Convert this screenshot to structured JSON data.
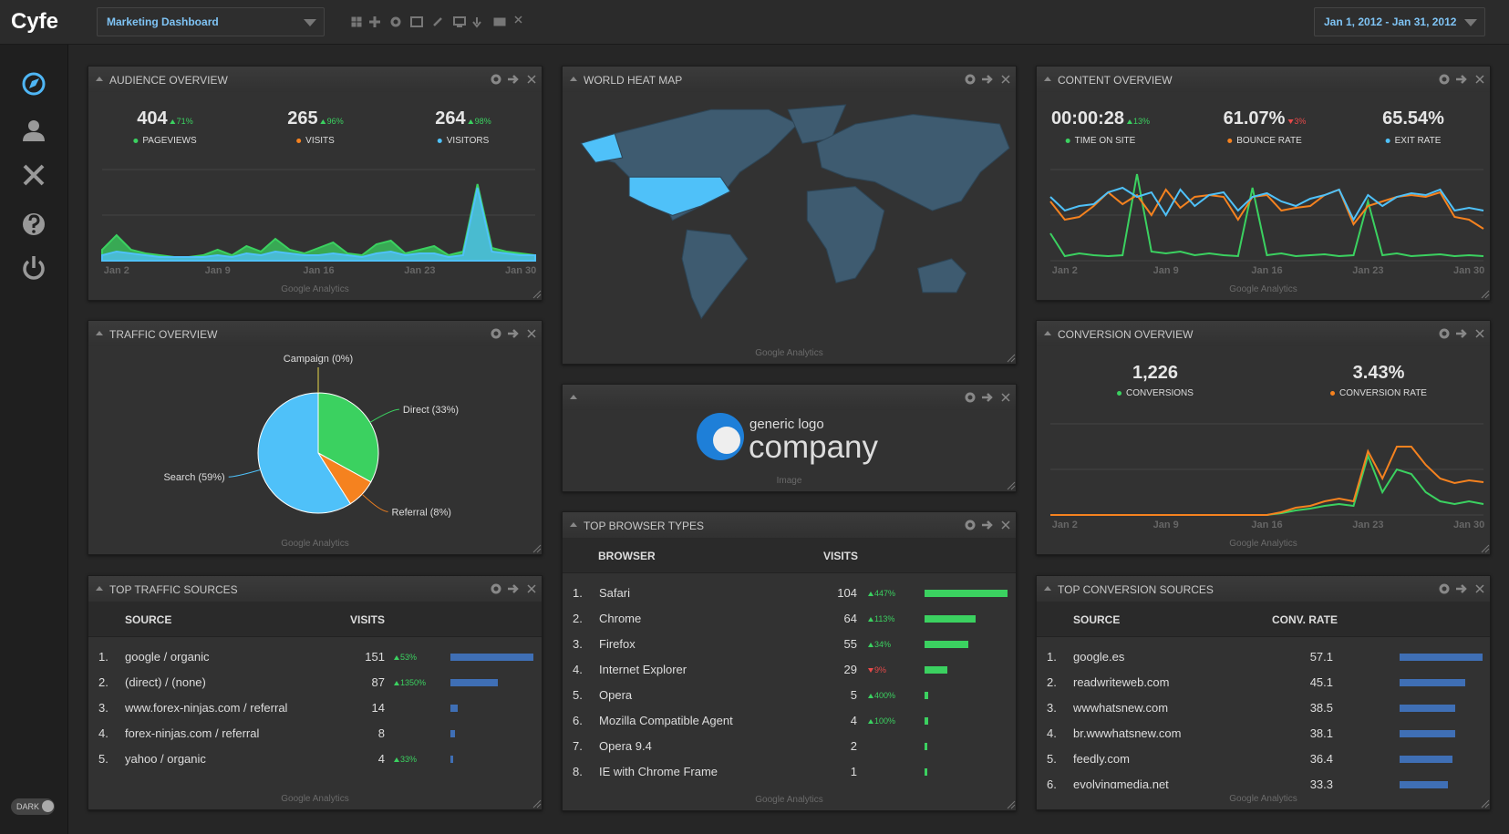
{
  "header": {
    "logo": "Cyfe",
    "dashboard": "Marketing Dashboard",
    "date_range": "Jan 1, 2012 - Jan 31, 2012"
  },
  "sidebar": {
    "theme_toggle": "DARK"
  },
  "widgets": {
    "audience": {
      "title": "AUDIENCE OVERVIEW",
      "metrics": [
        {
          "value": "404",
          "change": "71%",
          "trend": "up",
          "label": "PAGEVIEWS",
          "color": "#3bd160"
        },
        {
          "value": "265",
          "change": "96%",
          "trend": "up",
          "label": "VISITS",
          "color": "#f5821f"
        },
        {
          "value": "264",
          "change": "98%",
          "trend": "up",
          "label": "VISITORS",
          "color": "#4fc1f9"
        }
      ],
      "chart": {
        "type": "area",
        "categories": [
          null,
          "Jan 2",
          null,
          null,
          null,
          null,
          null,
          null,
          "Jan 9",
          null,
          null,
          null,
          null,
          null,
          null,
          "Jan 16",
          null,
          null,
          null,
          null,
          null,
          null,
          "Jan 23",
          null,
          null,
          null,
          null,
          null,
          null,
          "Jan 30",
          null
        ],
        "ylim": [
          0,
          50
        ],
        "yticks": [
          0,
          25,
          50
        ],
        "series": [
          {
            "color": "#3bd160",
            "values": [
              6,
              14,
              6,
              4,
              3,
              2,
              2,
              3,
              6,
              3,
              8,
              5,
              12,
              6,
              4,
              7,
              10,
              4,
              3,
              9,
              11,
              4,
              6,
              8,
              3,
              5,
              42,
              7,
              5,
              4,
              3
            ]
          },
          {
            "color": "#4fc1f9",
            "values": [
              3,
              5,
              4,
              3,
              2,
              2,
              2,
              2,
              3,
              2,
              4,
              3,
              5,
              4,
              3,
              3,
              4,
              3,
              2,
              4,
              5,
              3,
              4,
              4,
              2,
              3,
              40,
              5,
              4,
              3,
              3
            ]
          }
        ]
      },
      "source": "Google Analytics"
    },
    "map": {
      "title": "WORLD HEAT MAP",
      "source": "Google Analytics"
    },
    "content": {
      "title": "CONTENT OVERVIEW",
      "metrics": [
        {
          "value": "00:00:28",
          "change": "13%",
          "trend": "up",
          "label": "TIME ON SITE",
          "color": "#3bd160"
        },
        {
          "value": "61.07%",
          "change": "3%",
          "trend": "down",
          "label": "BOUNCE RATE",
          "color": "#f5821f"
        },
        {
          "value": "65.54%",
          "label": "EXIT RATE",
          "color": "#4fc1f9"
        }
      ],
      "chart": {
        "type": "line",
        "categories": [
          null,
          "Jan 2",
          null,
          null,
          null,
          null,
          null,
          null,
          "Jan 9",
          null,
          null,
          null,
          null,
          null,
          null,
          "Jan 16",
          null,
          null,
          null,
          null,
          null,
          null,
          "Jan 23",
          null,
          null,
          null,
          null,
          null,
          null,
          "Jan 30",
          null
        ],
        "ylim": [
          0,
          100
        ],
        "yticks": [
          0,
          50,
          100
        ],
        "series": [
          {
            "color": "#3bd160",
            "values": [
              30,
              5,
              8,
              6,
              5,
              6,
              95,
              10,
              8,
              10,
              6,
              8,
              6,
              5,
              80,
              6,
              8,
              5,
              6,
              7,
              5,
              6,
              65,
              6,
              8,
              5,
              6,
              7,
              5,
              6,
              5
            ]
          },
          {
            "color": "#f5821f",
            "values": [
              65,
              45,
              48,
              60,
              75,
              62,
              72,
              50,
              78,
              58,
              70,
              72,
              70,
              45,
              70,
              72,
              55,
              58,
              60,
              72,
              78,
              40,
              60,
              65,
              70,
              72,
              70,
              75,
              48,
              45,
              35
            ]
          },
          {
            "color": "#4fc1f9",
            "values": [
              70,
              55,
              60,
              62,
              75,
              80,
              70,
              75,
              50,
              78,
              60,
              72,
              75,
              55,
              70,
              74,
              65,
              60,
              68,
              72,
              78,
              45,
              72,
              60,
              70,
              74,
              72,
              78,
              55,
              58,
              55
            ]
          }
        ]
      },
      "source": "Google Analytics"
    },
    "traffic": {
      "title": "TRAFFIC OVERVIEW",
      "chart": {
        "type": "pie",
        "values": [
          0,
          33,
          8,
          59
        ],
        "value_labels": [
          "Campaign (0%)",
          "Direct (33%)",
          "Referral (8%)",
          "Search (59%)"
        ],
        "colors": [
          "#e8d84a",
          "#3bd160",
          "#f5821f",
          "#4fc1f9"
        ]
      },
      "source": "Google Analytics"
    },
    "image": {
      "logo_small": "generic logo",
      "logo_large": "company",
      "source": "Image"
    },
    "conversion": {
      "title": "CONVERSION OVERVIEW",
      "metrics": [
        {
          "value": "1,226",
          "label": "CONVERSIONS",
          "color": "#3bd160"
        },
        {
          "value": "3.43%",
          "label": "CONVERSION RATE",
          "color": "#f5821f"
        }
      ],
      "chart": {
        "type": "line",
        "categories": [
          null,
          "Jan 2",
          null,
          null,
          null,
          null,
          null,
          null,
          "Jan 9",
          null,
          null,
          null,
          null,
          null,
          null,
          "Jan 16",
          null,
          null,
          null,
          null,
          null,
          null,
          "Jan 23",
          null,
          null,
          null,
          null,
          null,
          null,
          "Jan 30",
          null
        ],
        "ylim": [
          0,
          100
        ],
        "yticks": [
          0,
          50,
          100
        ],
        "series": [
          {
            "color": "#3bd160",
            "values": [
              0,
              0,
              0,
              0,
              0,
              0,
              0,
              0,
              0,
              0,
              0,
              0,
              0,
              0,
              0,
              0,
              2,
              5,
              7,
              10,
              12,
              10,
              65,
              25,
              50,
              45,
              25,
              15,
              12,
              15,
              12
            ]
          },
          {
            "color": "#f5821f",
            "values": [
              0,
              0,
              0,
              0,
              0,
              0,
              0,
              0,
              0,
              0,
              0,
              0,
              0,
              0,
              0,
              0,
              3,
              8,
              10,
              15,
              18,
              15,
              70,
              40,
              75,
              75,
              55,
              40,
              35,
              38,
              36
            ]
          }
        ]
      },
      "source": "Google Analytics"
    },
    "traffic_sources": {
      "title": "TOP TRAFFIC SOURCES",
      "columns": [
        "SOURCE",
        "VISITS"
      ],
      "rows": [
        {
          "rank": "1.",
          "name": "google / organic",
          "value": 151,
          "change": "53%",
          "trend": "up"
        },
        {
          "rank": "2.",
          "name": "(direct) / (none)",
          "value": 87,
          "change": "1350%",
          "trend": "up"
        },
        {
          "rank": "3.",
          "name": "www.forex-ninjas.com / referral",
          "value": 14
        },
        {
          "rank": "4.",
          "name": "forex-ninjas.com / referral",
          "value": 8
        },
        {
          "rank": "5.",
          "name": "yahoo / organic",
          "value": 4,
          "change": "33%",
          "trend": "up"
        }
      ],
      "bar_color": "#3f6fb5",
      "source": "Google Analytics"
    },
    "browsers": {
      "title": "TOP BROWSER TYPES",
      "columns": [
        "BROWSER",
        "VISITS"
      ],
      "rows": [
        {
          "rank": "1.",
          "name": "Safari",
          "value": 104,
          "change": "447%",
          "trend": "up"
        },
        {
          "rank": "2.",
          "name": "Chrome",
          "value": 64,
          "change": "113%",
          "trend": "up"
        },
        {
          "rank": "3.",
          "name": "Firefox",
          "value": 55,
          "change": "34%",
          "trend": "up"
        },
        {
          "rank": "4.",
          "name": "Internet Explorer",
          "value": 29,
          "change": "9%",
          "trend": "down"
        },
        {
          "rank": "5.",
          "name": "Opera",
          "value": 5,
          "change": "400%",
          "trend": "up"
        },
        {
          "rank": "6.",
          "name": "Mozilla Compatible Agent",
          "value": 4,
          "change": "100%",
          "trend": "up"
        },
        {
          "rank": "7.",
          "name": "Opera 9.4",
          "value": 2
        },
        {
          "rank": "8.",
          "name": "IE with Chrome Frame",
          "value": 1
        }
      ],
      "bar_color": "#3bd160",
      "source": "Google Analytics"
    },
    "conversion_sources": {
      "title": "TOP CONVERSION SOURCES",
      "columns": [
        "SOURCE",
        "CONV. RATE"
      ],
      "rows": [
        {
          "rank": "1.",
          "name": "google.es",
          "value": 57.1
        },
        {
          "rank": "2.",
          "name": "readwriteweb.com",
          "value": 45.1
        },
        {
          "rank": "3.",
          "name": "wwwhatsnew.com",
          "value": 38.5
        },
        {
          "rank": "4.",
          "name": "br.wwwhatsnew.com",
          "value": 38.1
        },
        {
          "rank": "5.",
          "name": "feedly.com",
          "value": 36.4
        },
        {
          "rank": "6.",
          "name": "evolvingmedia.net",
          "value": 33.3
        }
      ],
      "bar_color": "#3f6fb5",
      "source": "Google Analytics"
    }
  }
}
